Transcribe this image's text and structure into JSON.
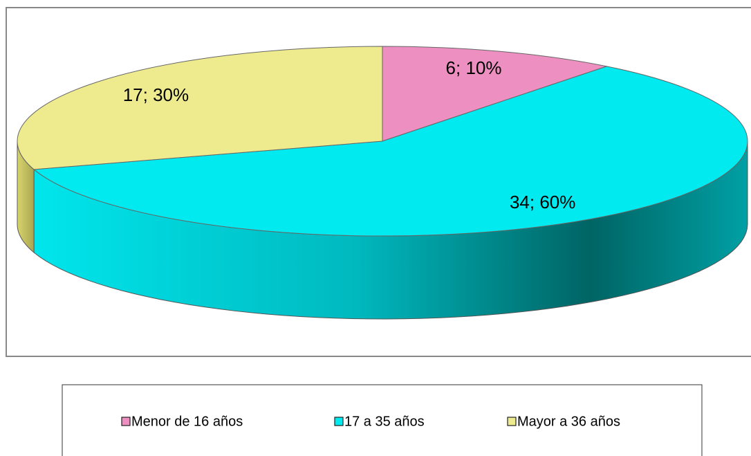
{
  "chart_data": {
    "type": "pie3d",
    "categories": [
      "Menor de 16 años",
      "17 a 35 años",
      "Mayor a 36 años"
    ],
    "values": [
      6,
      34,
      17
    ],
    "value_labels": [
      "6; 10%",
      "34; 60%",
      "17; 30%"
    ],
    "colors": [
      "#ee8fc1",
      "#00eaf0",
      "#eeeb8f"
    ],
    "legend": "bottom"
  }
}
